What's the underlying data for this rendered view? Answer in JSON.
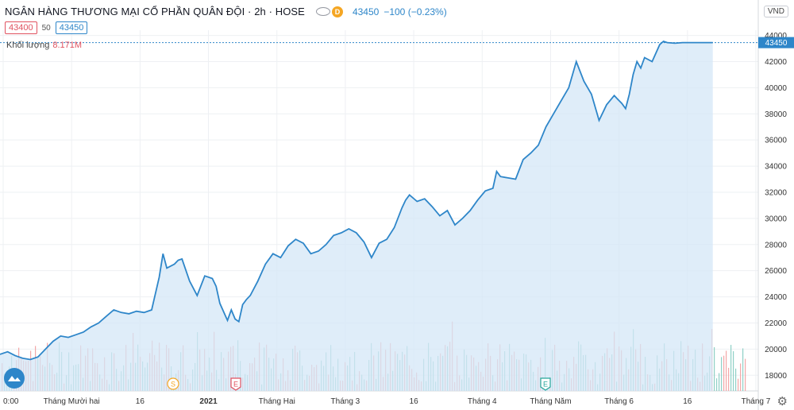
{
  "header": {
    "symbol": "NGÂN HÀNG THƯƠNG MẠI CỔ PHẦN QUÂN ĐỘI · 2h · HOSE",
    "badge": "D",
    "last_price": "43450",
    "change": "−100 (−0.23%)",
    "bid": "43400",
    "spread": "50",
    "ask": "43450",
    "volume_label": "Khối lượng",
    "volume_value": "8.171M",
    "currency": "VND"
  },
  "icons": {
    "eye": "eye-icon",
    "logo": "cloud-logo-icon",
    "settings": "gear-icon"
  },
  "colors": {
    "line": "#2e86c9",
    "area": "#d4e7f7",
    "vol_up": "#8fd0c6",
    "vol_down": "#f3a7a7"
  },
  "chart_data": {
    "type": "area",
    "y_axis_side": "right",
    "ylim": [
      16800,
      44400
    ],
    "y_ticks": [
      18000,
      20000,
      22000,
      24000,
      26000,
      28000,
      30000,
      32000,
      34000,
      36000,
      38000,
      40000,
      42000,
      44000
    ],
    "last_value": 43450,
    "x_tick_labels": [
      "0:00",
      "Tháng Mười hai",
      "16",
      "2021",
      "Tháng Hai",
      "Tháng 3",
      "16",
      "Tháng 4",
      "Tháng Năm",
      "Tháng 6",
      "16",
      "Tháng 7"
    ],
    "event_markers": [
      "S",
      "E",
      "E"
    ],
    "series": [
      {
        "x": [
          0,
          0.01,
          0.02,
          0.03,
          0.04,
          0.05,
          0.06,
          0.07,
          0.08,
          0.09,
          0.1,
          0.11,
          0.12,
          0.13,
          0.14,
          0.15,
          0.16,
          0.17,
          0.18,
          0.19,
          0.2,
          0.21,
          0.215,
          0.22,
          0.23,
          0.235,
          0.24,
          0.25,
          0.26,
          0.27,
          0.28,
          0.285,
          0.29,
          0.3,
          0.305,
          0.31,
          0.315,
          0.32,
          0.325,
          0.33,
          0.34,
          0.35,
          0.36,
          0.37,
          0.38,
          0.39,
          0.4,
          0.41,
          0.42,
          0.43,
          0.44,
          0.45,
          0.46,
          0.47,
          0.48,
          0.49,
          0.5,
          0.51,
          0.52,
          0.53,
          0.535,
          0.54,
          0.55,
          0.56,
          0.57,
          0.58,
          0.59,
          0.6,
          0.61,
          0.62,
          0.63,
          0.64,
          0.65,
          0.655,
          0.66,
          0.67,
          0.68,
          0.69,
          0.7,
          0.71,
          0.72,
          0.73,
          0.74,
          0.75,
          0.76,
          0.77,
          0.78,
          0.79,
          0.8,
          0.81,
          0.815,
          0.82,
          0.825,
          0.83,
          0.835,
          0.84,
          0.845,
          0.85,
          0.86,
          0.87,
          0.875,
          0.88,
          0.89,
          0.9,
          0.91,
          0.92,
          0.925,
          0.93,
          0.94
        ],
        "values": [
          19600,
          19800,
          19500,
          19300,
          19200,
          19400,
          20000,
          20600,
          21000,
          20900,
          21100,
          21300,
          21700,
          22000,
          22500,
          23000,
          22800,
          22700,
          22900,
          22800,
          23000,
          25500,
          27300,
          26200,
          26500,
          26800,
          26900,
          25200,
          24100,
          25600,
          25400,
          24800,
          23500,
          22200,
          23000,
          22300,
          22100,
          23400,
          23800,
          24100,
          25200,
          26500,
          27300,
          27000,
          27900,
          28400,
          28100,
          27300,
          27500,
          28000,
          28700,
          28900,
          29200,
          28900,
          28200,
          27000,
          28100,
          28400,
          29300,
          30800,
          31400,
          31800,
          31300,
          31500,
          30900,
          30200,
          30600,
          29500,
          30000,
          30600,
          31400,
          32100,
          32300,
          33600,
          33200,
          33100,
          33000,
          34500,
          35000,
          35600,
          37000,
          38000,
          39000,
          40000,
          42000,
          40500,
          39500,
          37500,
          38700,
          39400,
          39100,
          38800,
          38400,
          39500,
          41000,
          42000,
          41500,
          42300,
          42000,
          43300,
          43550,
          43450,
          43400,
          43450,
          43450,
          43450,
          43450,
          43450,
          43450
        ]
      }
    ]
  }
}
